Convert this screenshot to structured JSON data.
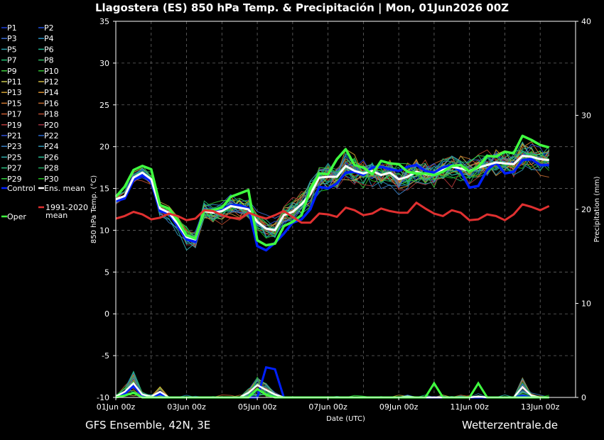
{
  "title": "Llagostera  (ES)  850 hPa Temp. & Precipitación | Mon, 01Jun2026 00Z",
  "footer_left": "GFS Ensemble, 42N, 3E",
  "footer_right": "Wetterzentrale.de",
  "chart_data": {
    "type": "line",
    "xlabel": "Date (UTC)",
    "ylabel": "850 hPa Temp. (°C)",
    "y2label": "Precipitation (mm)",
    "ylim": [
      -10,
      35
    ],
    "y2lim": [
      0,
      40
    ],
    "yticks": [
      -10,
      -5,
      0,
      5,
      10,
      15,
      20,
      25,
      30,
      35
    ],
    "y2ticks": [
      0,
      10,
      20,
      30,
      40
    ],
    "xlim": [
      0,
      312
    ],
    "xticks": [
      {
        "hour": 0,
        "label": "01Jun 00z"
      },
      {
        "hour": 48,
        "label": "03Jun 00z"
      },
      {
        "hour": 96,
        "label": "05Jun 00z"
      },
      {
        "hour": 144,
        "label": "07Jun 00z"
      },
      {
        "hour": 192,
        "label": "09Jun 00z"
      },
      {
        "hour": 240,
        "label": "11Jun 00z"
      },
      {
        "hour": 288,
        "label": "13Jun 00z"
      }
    ],
    "step_hours": 6,
    "grid": true,
    "legend": "left",
    "legend_entries": [
      {
        "label": "P1",
        "color": "#1a3cd8"
      },
      {
        "label": "P2",
        "color": "#2050e0"
      },
      {
        "label": "P3",
        "color": "#3a6ad0"
      },
      {
        "label": "P4",
        "color": "#2a90c0"
      },
      {
        "label": "P5",
        "color": "#2aa0b0"
      },
      {
        "label": "P6",
        "color": "#20b890"
      },
      {
        "label": "P7",
        "color": "#20c070"
      },
      {
        "label": "P8",
        "color": "#30b860"
      },
      {
        "label": "P9",
        "color": "#40d040"
      },
      {
        "label": "P10",
        "color": "#30c030"
      },
      {
        "label": "P11",
        "color": "#c8c850"
      },
      {
        "label": "P12",
        "color": "#d0b840"
      },
      {
        "label": "P13",
        "color": "#d0a030"
      },
      {
        "label": "P14",
        "color": "#d89030"
      },
      {
        "label": "P15",
        "color": "#d07830"
      },
      {
        "label": "P16",
        "color": "#c06830"
      },
      {
        "label": "P17",
        "color": "#c85a30"
      },
      {
        "label": "P18",
        "color": "#b84a30"
      },
      {
        "label": "P19",
        "color": "#b83a3a"
      },
      {
        "label": "P20",
        "color": "#a03040"
      },
      {
        "label": "P21",
        "color": "#3050d8"
      },
      {
        "label": "P22",
        "color": "#2868d0"
      },
      {
        "label": "P23",
        "color": "#3880c8"
      },
      {
        "label": "P24",
        "color": "#3098b8"
      },
      {
        "label": "P25",
        "color": "#30b0b0"
      },
      {
        "label": "P26",
        "color": "#28c098"
      },
      {
        "label": "P27",
        "color": "#28c080"
      },
      {
        "label": "P28",
        "color": "#20a860"
      },
      {
        "label": "P29",
        "color": "#30d040"
      },
      {
        "label": "P30",
        "color": "#20c020"
      },
      {
        "label": "Control",
        "color": "#0020ff"
      },
      {
        "label": "Ens. mean",
        "color": "#ffffff"
      },
      {
        "label": "Oper",
        "color": "#40ff40"
      },
      {
        "label": "1991-2020 mean",
        "color": "#e03030"
      }
    ],
    "series": [
      {
        "name": "Control",
        "color": "#0020ff",
        "width": 3.5,
        "values": [
          13.5,
          13.8,
          16,
          16.6,
          15.8,
          12.3,
          12,
          10.5,
          8.9,
          8.6,
          12.4,
          12.2,
          12.5,
          13,
          13,
          12.6,
          8.1,
          7.6,
          8.5,
          9.6,
          10.9,
          11.3,
          12.5,
          15.2,
          15,
          15.6,
          16.9,
          17,
          16.6,
          17.5,
          17.6,
          17.3,
          17.1,
          17.6,
          17.8,
          17.1,
          16.9,
          17.5,
          17.8,
          17,
          15.1,
          15.3,
          17.2,
          18.1,
          16.8,
          17,
          18.4,
          18.5,
          17.8,
          17.8
        ]
      },
      {
        "name": "Ens. mean",
        "color": "#ffffff",
        "width": 3,
        "values": [
          13.7,
          14.1,
          16.3,
          16.9,
          16.1,
          12.6,
          12.1,
          10.8,
          9.2,
          8.9,
          12.3,
          12.1,
          12.3,
          12.9,
          12.7,
          12.5,
          11,
          10.2,
          10,
          11.8,
          12.2,
          13.1,
          14.3,
          16.3,
          16.4,
          16.4,
          17.7,
          17.1,
          16.8,
          17.1,
          16.6,
          16.9,
          16.1,
          16.4,
          17,
          16.7,
          16.6,
          17.2,
          17.6,
          17.4,
          17.1,
          17.5,
          17.8,
          18.1,
          18,
          17.9,
          18.9,
          18.8,
          18.5,
          18.4
        ]
      },
      {
        "name": "Oper",
        "color": "#40ff40",
        "width": 3.5,
        "values": [
          14,
          15.2,
          17.2,
          17.7,
          17.3,
          13,
          12.6,
          11.2,
          9.4,
          9,
          12.4,
          12.4,
          12.7,
          14,
          14.4,
          14.8,
          8.8,
          8.2,
          8.4,
          10.5,
          11,
          11.8,
          14.9,
          16.8,
          16.7,
          18.5,
          19.7,
          17.8,
          17.5,
          16.7,
          18.3,
          18,
          17.9,
          17,
          16.8,
          16.8,
          16.6,
          17,
          17.7,
          17.8,
          17,
          17.6,
          18.9,
          18.8,
          19.4,
          19.2,
          21.3,
          20.8,
          20.2,
          19.9
        ]
      },
      {
        "name": "1991-2020 mean",
        "color": "#e03030",
        "width": 3,
        "values": [
          11.4,
          11.7,
          12.2,
          11.9,
          11.3,
          11.5,
          12,
          11.7,
          11.2,
          11.4,
          12.4,
          12.3,
          11.8,
          11.5,
          11.4,
          12.1,
          11.7,
          11.4,
          11.8,
          12.3,
          11.6,
          10.9,
          10.9,
          12,
          11.9,
          11.6,
          12.7,
          12.4,
          11.8,
          12,
          12.6,
          12.3,
          12.1,
          12.1,
          13.3,
          12.6,
          12,
          11.7,
          12.4,
          12.1,
          11.2,
          11.3,
          11.9,
          11.7,
          11.2,
          11.9,
          13.1,
          12.8,
          12.4,
          12.9
        ]
      }
    ],
    "precip_series": [
      {
        "name": "Control",
        "color": "#0020ff",
        "width": 3,
        "values": [
          0,
          0.4,
          1.2,
          0.2,
          0,
          0.4,
          0,
          0,
          0,
          0,
          0,
          0,
          0,
          0,
          0,
          0,
          0,
          3.2,
          3.0,
          0,
          0,
          0,
          0,
          0,
          0,
          0,
          0,
          0,
          0,
          0,
          0,
          0,
          0,
          0,
          0,
          0,
          0,
          0,
          0,
          0,
          0,
          0,
          0,
          0,
          0,
          0,
          0.2,
          0,
          0,
          0
        ]
      },
      {
        "name": "Ens. mean",
        "color": "#ffffff",
        "width": 2.5,
        "values": [
          0.1,
          0.6,
          1.5,
          0.3,
          0.1,
          0.6,
          0,
          0,
          0,
          0,
          0,
          0,
          0,
          0,
          0,
          0.5,
          1.3,
          0.8,
          0.3,
          0,
          0,
          0,
          0,
          0,
          0,
          0,
          0,
          0,
          0,
          0,
          0,
          0,
          0,
          0.1,
          0,
          0,
          0,
          0,
          0,
          0,
          0,
          0.1,
          0,
          0,
          0,
          0,
          1.1,
          0.2,
          0,
          0
        ]
      },
      {
        "name": "Oper",
        "color": "#40ff40",
        "width": 3,
        "values": [
          0,
          0.2,
          0.5,
          0,
          0,
          0,
          0,
          0,
          0,
          0,
          0,
          0,
          0,
          0,
          0,
          0,
          0.9,
          0.3,
          0,
          0,
          0,
          0,
          0,
          0,
          0,
          0,
          0,
          0,
          0,
          0,
          0,
          0,
          0,
          0,
          0,
          0,
          1.5,
          0,
          0,
          0,
          0,
          1.5,
          0,
          0,
          0,
          0,
          0,
          0,
          0,
          0
        ]
      }
    ]
  }
}
